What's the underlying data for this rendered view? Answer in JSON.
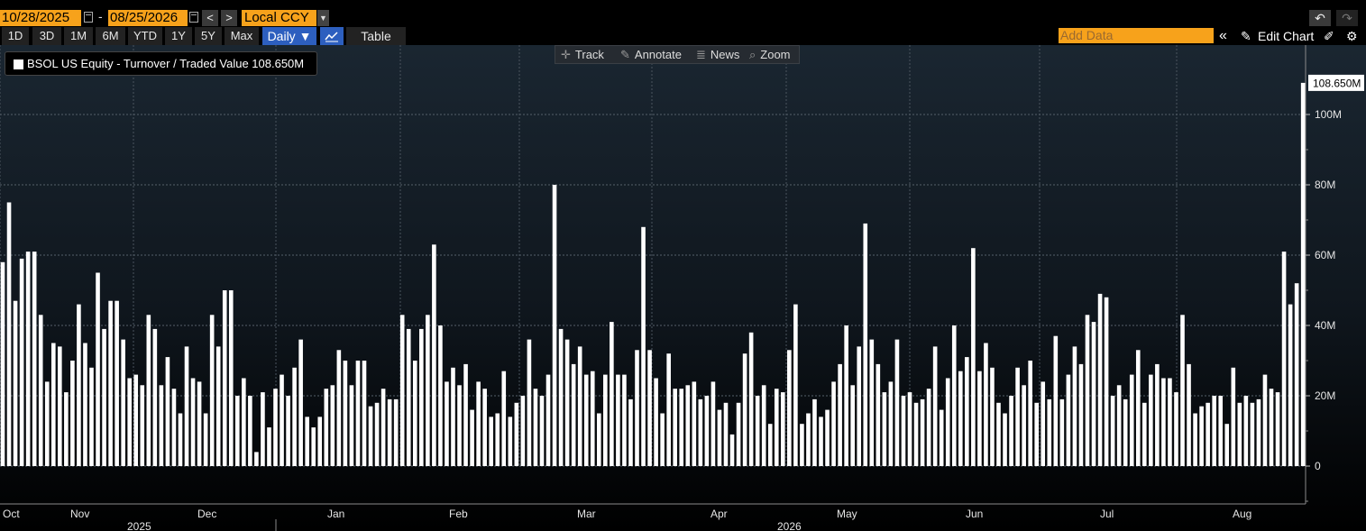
{
  "toolbar": {
    "start_date": "10/28/2025",
    "end_date": "08/25/2026",
    "date_separator": "-",
    "prev_label": "<",
    "next_label": ">",
    "currency": "Local CCY",
    "ranges": [
      "1D",
      "3D",
      "1M",
      "6M",
      "YTD",
      "1Y",
      "5Y",
      "Max"
    ],
    "frequency": "Daily ▼",
    "table_label": "Table",
    "add_data_placeholder": "Add Data",
    "collapse_label": "«",
    "edit_chart_label": "Edit Chart",
    "undo_label": "↶",
    "redo_label": "↷"
  },
  "chart_tools": {
    "track": "Track",
    "annotate": "Annotate",
    "news": "News",
    "zoom": "Zoom"
  },
  "legend": {
    "label": "BSOL US Equity - Turnover / Traded Value 108.650M"
  },
  "colors": {
    "accent": "#f7a21b",
    "selected": "#2d5fbf",
    "bar": "#ffffff"
  },
  "chart_data": {
    "type": "bar",
    "title": "",
    "xlabel": "",
    "ylabel": "",
    "series": [
      {
        "name": "BSOL US Equity - Turnover / Traded Value",
        "last_value_label": "108.650M"
      }
    ],
    "ylim": [
      -10,
      117
    ],
    "y_ticks": [
      0,
      20,
      40,
      60,
      80,
      100
    ],
    "y_tick_labels": [
      "0",
      "20M",
      "40M",
      "60M",
      "80M",
      "100M"
    ],
    "month_labels": [
      "Oct",
      "Nov",
      "Dec",
      "Jan",
      "Feb",
      "Mar",
      "Apr",
      "May",
      "Jun",
      "Jul",
      "Aug"
    ],
    "year_labels": [
      "2025",
      "2026"
    ],
    "grid": true,
    "values_millions": [
      58,
      75,
      47,
      59,
      61,
      61,
      43,
      24,
      35,
      34,
      21,
      30,
      46,
      35,
      28,
      55,
      39,
      47,
      47,
      36,
      25,
      26,
      23,
      43,
      39,
      23,
      31,
      22,
      15,
      34,
      25,
      24,
      15,
      43,
      34,
      50,
      50,
      20,
      25,
      20,
      4,
      21,
      11,
      22,
      26,
      20,
      28,
      36,
      14,
      11,
      14,
      22,
      23,
      33,
      30,
      23,
      30,
      30,
      17,
      18,
      22,
      19,
      19,
      43,
      39,
      30,
      39,
      43,
      63,
      40,
      24,
      28,
      23,
      29,
      16,
      24,
      22,
      14,
      15,
      27,
      14,
      18,
      20,
      36,
      22,
      20,
      26,
      80,
      39,
      36,
      29,
      34,
      26,
      27,
      15,
      26,
      41,
      26,
      26,
      19,
      33,
      68,
      33,
      25,
      15,
      32,
      22,
      22,
      23,
      24,
      19,
      20,
      24,
      16,
      18,
      9,
      18,
      32,
      38,
      20,
      23,
      12,
      22,
      21,
      33,
      46,
      12,
      15,
      19,
      14,
      16,
      24,
      29,
      40,
      23,
      34,
      69,
      36,
      29,
      21,
      24,
      36,
      20,
      21,
      18,
      19,
      22,
      34,
      16,
      25,
      40,
      27,
      31,
      62,
      27,
      35,
      28,
      18,
      15,
      20,
      28,
      23,
      30,
      18,
      24,
      19,
      37,
      19,
      26,
      34,
      29,
      43,
      41,
      49,
      48,
      20,
      23,
      19,
      26,
      33,
      18,
      26,
      29,
      25,
      25,
      21,
      43,
      29,
      15,
      17,
      18,
      20,
      20,
      12,
      28,
      18,
      20,
      18,
      19,
      26,
      22,
      21,
      61,
      46,
      52,
      109
    ]
  }
}
